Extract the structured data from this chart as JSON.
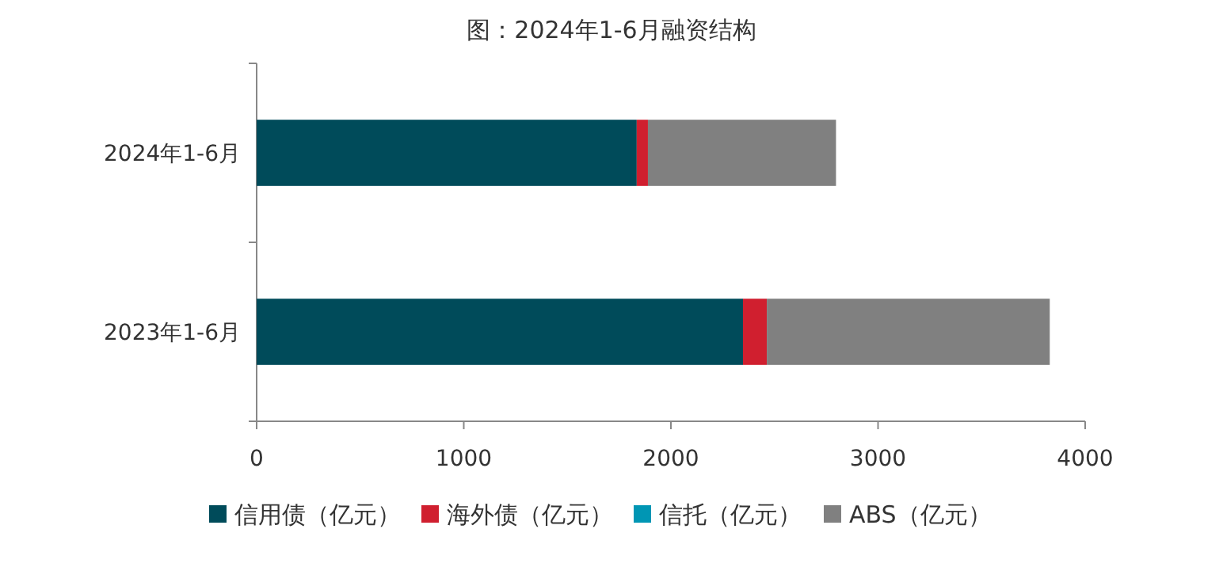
{
  "chart_data": {
    "type": "bar",
    "title": "图：2024年1-6月融资结构",
    "orientation": "horizontal",
    "stacked": true,
    "categories": [
      "2024年1-6月",
      "2023年1-6月"
    ],
    "series": [
      {
        "name": "信用债（亿元）",
        "color": "#004b5a",
        "values": [
          1835,
          2348
        ]
      },
      {
        "name": "海外债（亿元）",
        "color": "#d01f2f",
        "values": [
          54,
          115
        ]
      },
      {
        "name": "信托（亿元）",
        "color": "#0096b4",
        "values": [
          0,
          0
        ]
      },
      {
        "name": "ABS（亿元）",
        "color": "#808080",
        "values": [
          908,
          1366
        ]
      }
    ],
    "xlim": [
      0,
      4000
    ],
    "xticks": [
      0,
      1000,
      2000,
      3000,
      4000
    ],
    "grid": false,
    "legend": "bottom"
  }
}
